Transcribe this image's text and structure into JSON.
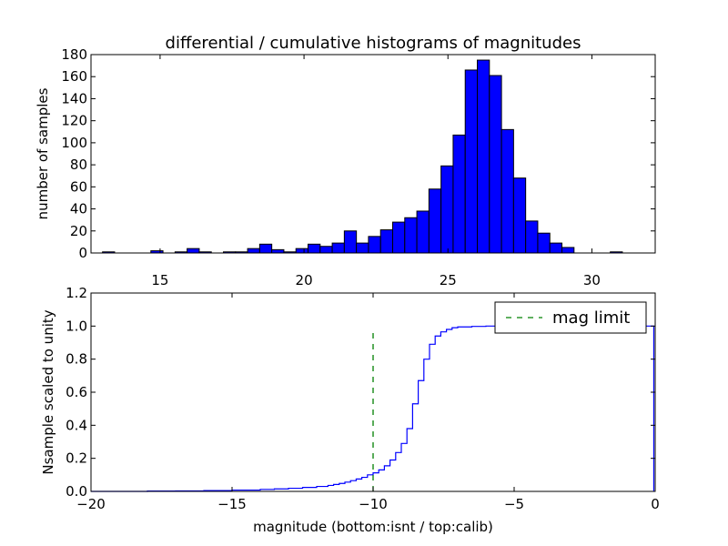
{
  "chart_data": [
    {
      "type": "bar",
      "title": "differential / cumulative histograms of magnitudes",
      "ylabel": "number of samples",
      "xlabel": "",
      "xlim": [
        12.6,
        32.2
      ],
      "ylim": [
        0,
        180
      ],
      "xticks": [
        15,
        20,
        25,
        30
      ],
      "yticks": [
        0,
        20,
        40,
        60,
        80,
        100,
        120,
        140,
        160,
        180
      ],
      "bin_width": 0.42,
      "bins": [
        {
          "x0": 13.0,
          "x1": 13.42,
          "count": 1
        },
        {
          "x0": 14.68,
          "x1": 15.1,
          "count": 2
        },
        {
          "x0": 15.52,
          "x1": 15.94,
          "count": 1
        },
        {
          "x0": 15.94,
          "x1": 16.36,
          "count": 4
        },
        {
          "x0": 16.36,
          "x1": 16.78,
          "count": 1
        },
        {
          "x0": 17.2,
          "x1": 17.62,
          "count": 1
        },
        {
          "x0": 17.62,
          "x1": 18.04,
          "count": 1
        },
        {
          "x0": 18.04,
          "x1": 18.46,
          "count": 4
        },
        {
          "x0": 18.46,
          "x1": 18.88,
          "count": 8
        },
        {
          "x0": 18.88,
          "x1": 19.3,
          "count": 3
        },
        {
          "x0": 19.3,
          "x1": 19.72,
          "count": 1
        },
        {
          "x0": 19.72,
          "x1": 20.14,
          "count": 4
        },
        {
          "x0": 20.14,
          "x1": 20.56,
          "count": 8
        },
        {
          "x0": 20.56,
          "x1": 20.98,
          "count": 6
        },
        {
          "x0": 20.98,
          "x1": 21.4,
          "count": 9
        },
        {
          "x0": 21.4,
          "x1": 21.82,
          "count": 20
        },
        {
          "x0": 21.82,
          "x1": 22.24,
          "count": 9
        },
        {
          "x0": 22.24,
          "x1": 22.66,
          "count": 15
        },
        {
          "x0": 22.66,
          "x1": 23.08,
          "count": 21
        },
        {
          "x0": 23.08,
          "x1": 23.5,
          "count": 28
        },
        {
          "x0": 23.5,
          "x1": 23.92,
          "count": 32
        },
        {
          "x0": 23.92,
          "x1": 24.34,
          "count": 38
        },
        {
          "x0": 24.34,
          "x1": 24.76,
          "count": 58
        },
        {
          "x0": 24.76,
          "x1": 25.18,
          "count": 79
        },
        {
          "x0": 25.18,
          "x1": 25.6,
          "count": 107
        },
        {
          "x0": 25.6,
          "x1": 26.02,
          "count": 166
        },
        {
          "x0": 26.02,
          "x1": 26.44,
          "count": 175
        },
        {
          "x0": 26.44,
          "x1": 26.86,
          "count": 161
        },
        {
          "x0": 26.86,
          "x1": 27.28,
          "count": 112
        },
        {
          "x0": 27.28,
          "x1": 27.7,
          "count": 68
        },
        {
          "x0": 27.7,
          "x1": 28.12,
          "count": 29
        },
        {
          "x0": 28.12,
          "x1": 28.54,
          "count": 18
        },
        {
          "x0": 28.54,
          "x1": 28.96,
          "count": 9
        },
        {
          "x0": 28.96,
          "x1": 29.38,
          "count": 5
        },
        {
          "x0": 30.64,
          "x1": 31.06,
          "count": 1
        }
      ],
      "bar_color": "#0000ff",
      "grid": false
    },
    {
      "type": "line",
      "title": "",
      "xlabel": "magnitude (bottom:isnt / top:calib)",
      "ylabel": "Nsample scaled to unity",
      "xlim": [
        -20,
        0
      ],
      "ylim": [
        0,
        1.2
      ],
      "xticks": [
        -20,
        -15,
        -10,
        -5,
        0
      ],
      "yticks": [
        0.0,
        0.2,
        0.4,
        0.6,
        0.8,
        1.0,
        1.2
      ],
      "series": [
        {
          "style": "steps",
          "color": "#0000ff",
          "points": [
            [
              -20.0,
              0.0
            ],
            [
              -18.0,
              0.002
            ],
            [
              -17.0,
              0.003
            ],
            [
              -16.0,
              0.005
            ],
            [
              -15.0,
              0.008
            ],
            [
              -14.0,
              0.012
            ],
            [
              -13.5,
              0.015
            ],
            [
              -13.0,
              0.019
            ],
            [
              -12.5,
              0.024
            ],
            [
              -12.0,
              0.03
            ],
            [
              -11.6,
              0.036
            ],
            [
              -11.4,
              0.042
            ],
            [
              -11.2,
              0.048
            ],
            [
              -11.0,
              0.056
            ],
            [
              -10.8,
              0.065
            ],
            [
              -10.6,
              0.075
            ],
            [
              -10.4,
              0.085
            ],
            [
              -10.2,
              0.1
            ],
            [
              -10.0,
              0.112
            ],
            [
              -9.8,
              0.13
            ],
            [
              -9.6,
              0.155
            ],
            [
              -9.4,
              0.19
            ],
            [
              -9.2,
              0.235
            ],
            [
              -9.0,
              0.29
            ],
            [
              -8.8,
              0.38
            ],
            [
              -8.6,
              0.53
            ],
            [
              -8.4,
              0.67
            ],
            [
              -8.2,
              0.8
            ],
            [
              -8.0,
              0.89
            ],
            [
              -7.8,
              0.94
            ],
            [
              -7.6,
              0.965
            ],
            [
              -7.4,
              0.98
            ],
            [
              -7.2,
              0.99
            ],
            [
              -7.0,
              0.995
            ],
            [
              -6.5,
              0.998
            ],
            [
              -6.0,
              1.0
            ],
            [
              -0.05,
              1.0
            ],
            [
              -0.05,
              0.0
            ]
          ]
        },
        {
          "name": "mag limit",
          "style": "dashed",
          "color": "#008000",
          "x": -10.0,
          "y_range": [
            0.0,
            0.97
          ]
        }
      ],
      "legend": {
        "entries": [
          "mag limit"
        ],
        "position": "top-right"
      },
      "grid": false
    }
  ]
}
